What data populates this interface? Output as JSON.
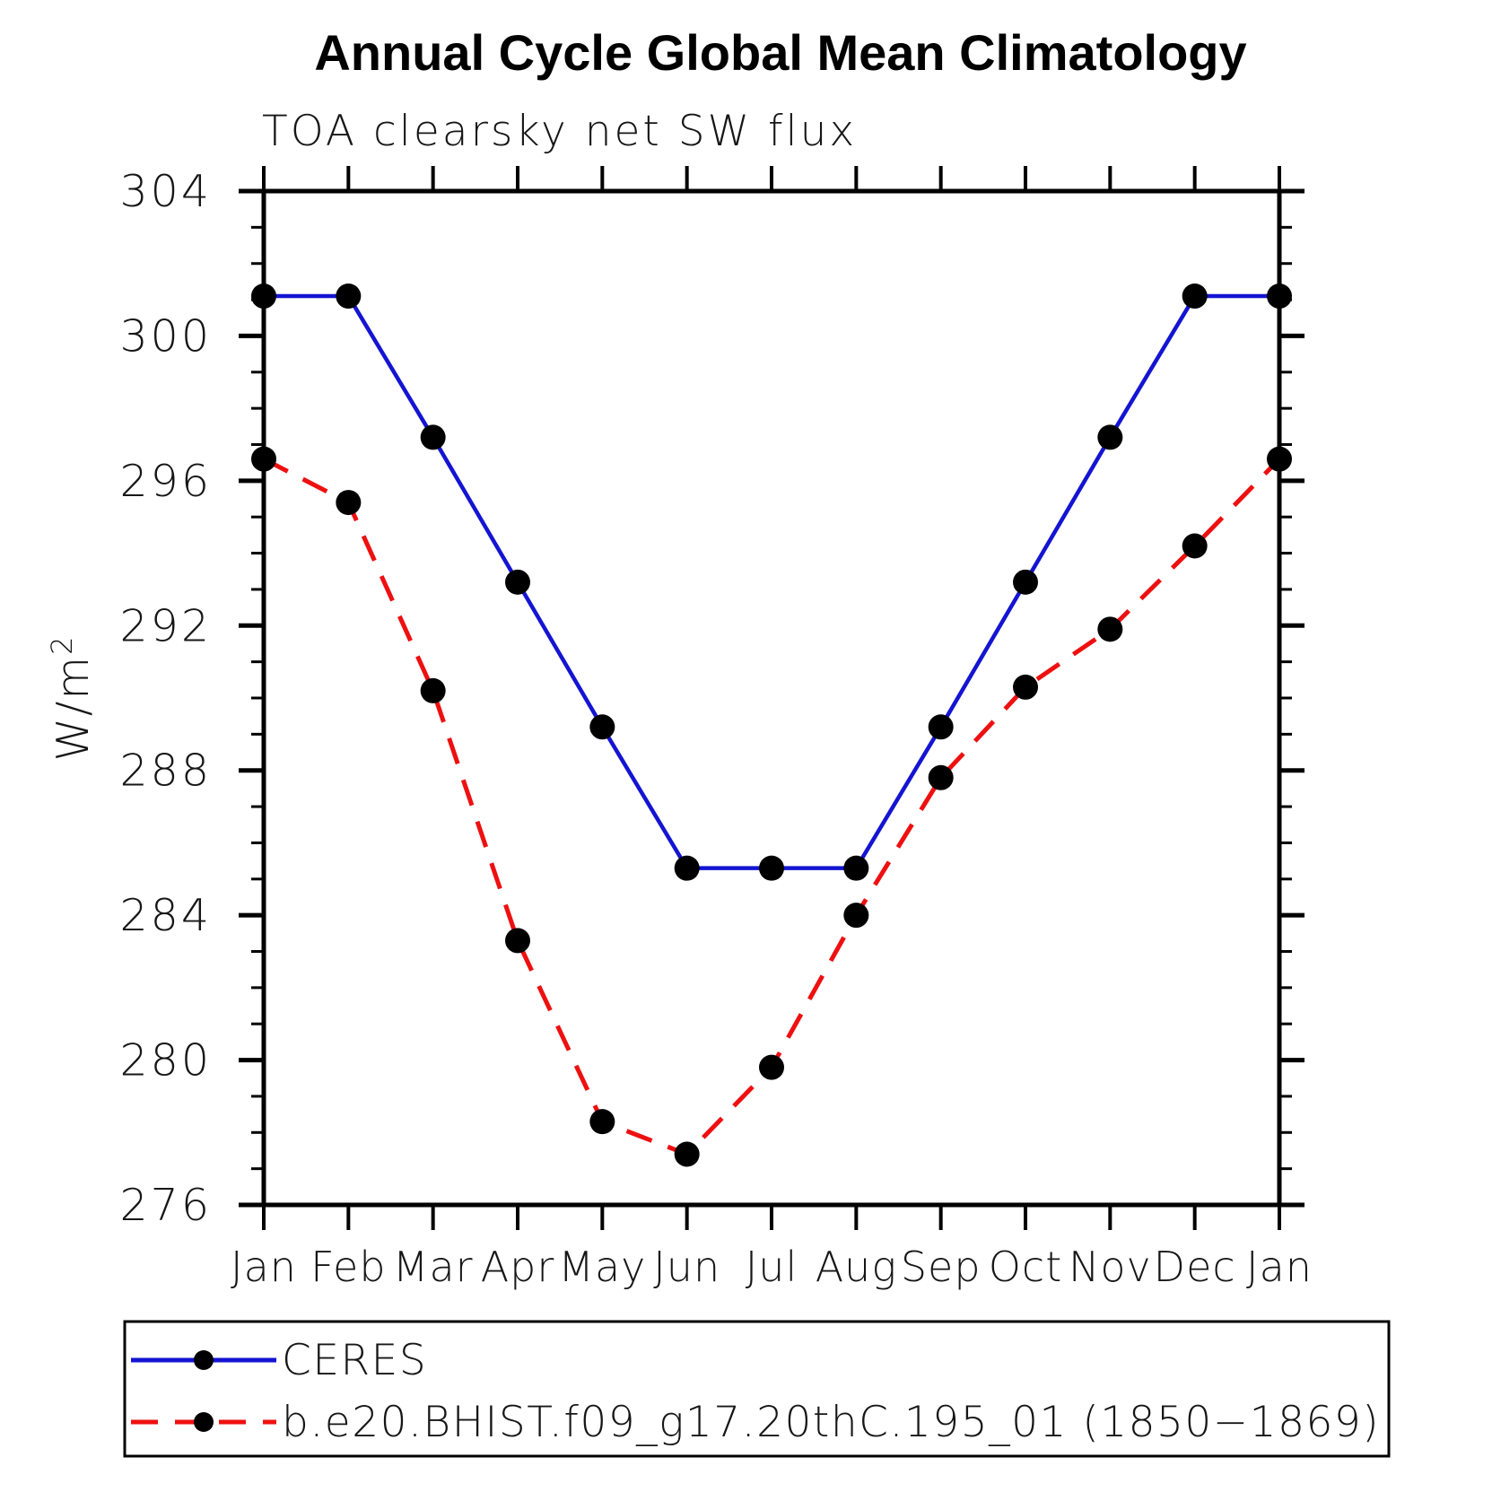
{
  "chart_data": {
    "type": "line",
    "title": "Annual Cycle Global Mean Climatology",
    "subtitle": "TOA clearsky net SW flux",
    "ylabel_base": "W/m",
    "ylabel_exponent": "2",
    "x_categories": [
      "Jan",
      "Feb",
      "Mar",
      "Apr",
      "May",
      "Jun",
      "Jul",
      "Aug",
      "Sep",
      "Oct",
      "Nov",
      "Dec",
      "Jan"
    ],
    "series": [
      {
        "name": "CERES",
        "color": "#1414d2",
        "line_style": "solid",
        "marker": "circle",
        "marker_color": "#000000",
        "values": [
          301.1,
          301.1,
          297.2,
          293.2,
          289.2,
          285.3,
          285.3,
          285.3,
          289.2,
          293.2,
          297.2,
          301.1,
          301.1
        ]
      },
      {
        "name": "b.e20.BHIST.f09_g17.20thC.195_01 (1850−1869)",
        "color": "#ee1010",
        "line_style": "dashed",
        "marker": "circle",
        "marker_color": "#000000",
        "values": [
          296.6,
          295.4,
          290.2,
          283.3,
          278.3,
          277.4,
          279.8,
          284.0,
          287.8,
          290.3,
          291.9,
          294.2,
          296.6
        ]
      }
    ],
    "ylim": [
      276,
      304
    ],
    "y_major_ticks": [
      276,
      280,
      284,
      288,
      292,
      296,
      300,
      304
    ],
    "y_minor_step": 1,
    "grid": false,
    "legend_position": "bottom-box"
  }
}
